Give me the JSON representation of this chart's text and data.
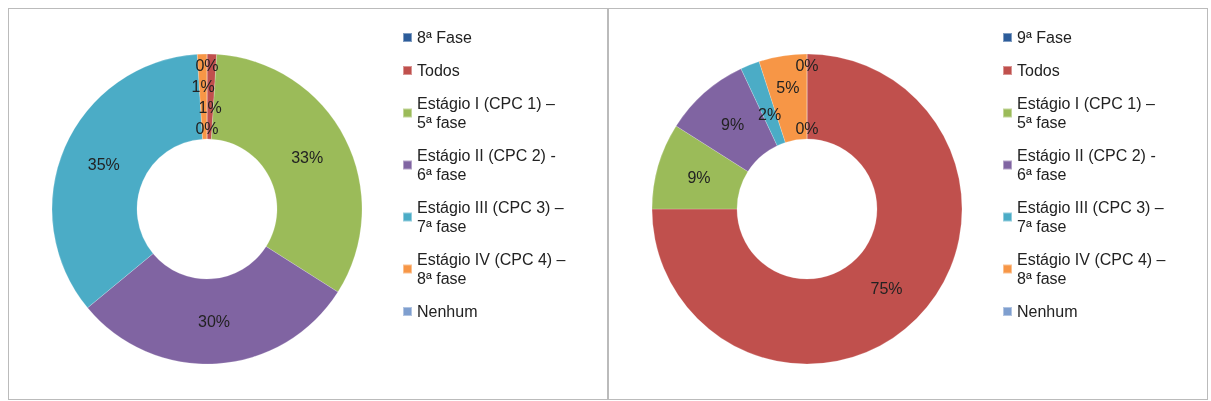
{
  "chart_data": [
    {
      "type": "donut",
      "categories": [
        "8ª Fase",
        "Todos",
        "Estágio I (CPC 1) – 5ª fase",
        "Estágio II (CPC 2) - 6ª fase",
        "Estágio III (CPC 3) – 7ª fase",
        "Estágio IV (CPC 4) – 8ª fase",
        "Nenhum"
      ],
      "values": [
        0,
        1,
        33,
        30,
        35,
        1,
        0
      ],
      "colors": [
        "#2c5c9a",
        "#c0504d",
        "#9bbb59",
        "#8064a2",
        "#4bacc6",
        "#f79646",
        "#7f9fcf"
      ],
      "value_labels": [
        "0%",
        "1%",
        "33%",
        "30%",
        "35%",
        "1%",
        "0%"
      ],
      "legend": "right"
    },
    {
      "type": "donut",
      "categories": [
        "9ª Fase",
        "Todos",
        "Estágio I (CPC 1) – 5ª fase",
        "Estágio II (CPC 2) - 6ª fase",
        "Estágio III (CPC 3) – 7ª fase",
        "Estágio IV (CPC 4) – 8ª fase",
        "Nenhum"
      ],
      "values": [
        0,
        75,
        9,
        9,
        2,
        5,
        0
      ],
      "colors": [
        "#2c5c9a",
        "#c0504d",
        "#9bbb59",
        "#8064a2",
        "#4bacc6",
        "#f79646",
        "#7f9fcf"
      ],
      "value_labels": [
        "0%",
        "75%",
        "9%",
        "9%",
        "2%",
        "5%",
        "0%"
      ],
      "legend": "right"
    }
  ]
}
